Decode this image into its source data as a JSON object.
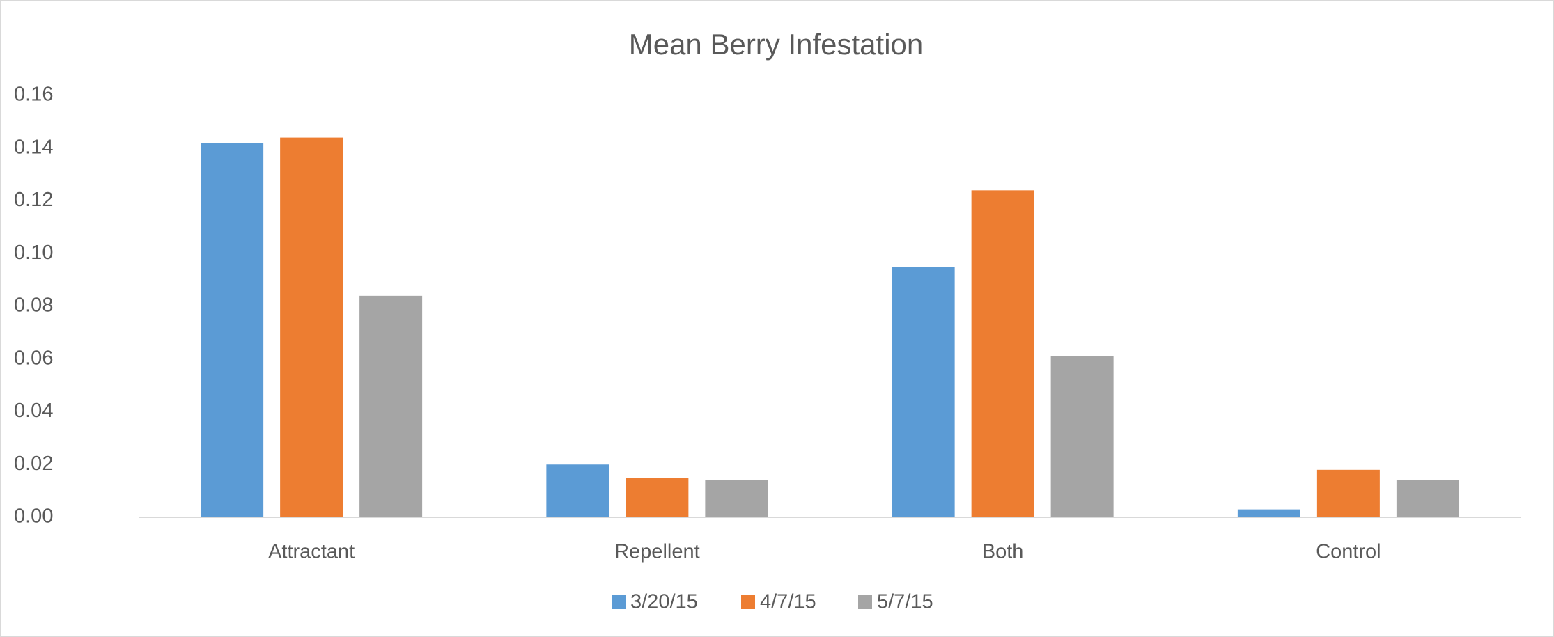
{
  "chart_data": {
    "type": "bar",
    "title": "Mean Berry Infestation",
    "categories": [
      "Attractant",
      "Repellent",
      "Both",
      "Control"
    ],
    "series": [
      {
        "name": "3/20/15",
        "color": "#5b9bd5",
        "values": [
          0.142,
          0.02,
          0.095,
          0.003
        ]
      },
      {
        "name": "4/7/15",
        "color": "#ed7d31",
        "values": [
          0.144,
          0.015,
          0.124,
          0.018
        ]
      },
      {
        "name": "5/7/15",
        "color": "#a5a5a5",
        "values": [
          0.084,
          0.014,
          0.061,
          0.014
        ]
      }
    ],
    "ylim": [
      0,
      0.16
    ],
    "yticks": [
      {
        "value": 0,
        "label": "0.00"
      },
      0.02,
      0.04,
      0.06,
      0.08,
      {
        "value": 0.1,
        "label": "0.10"
      },
      0.12,
      0.14,
      0.16
    ],
    "grid": false,
    "legend": "bottom"
  }
}
